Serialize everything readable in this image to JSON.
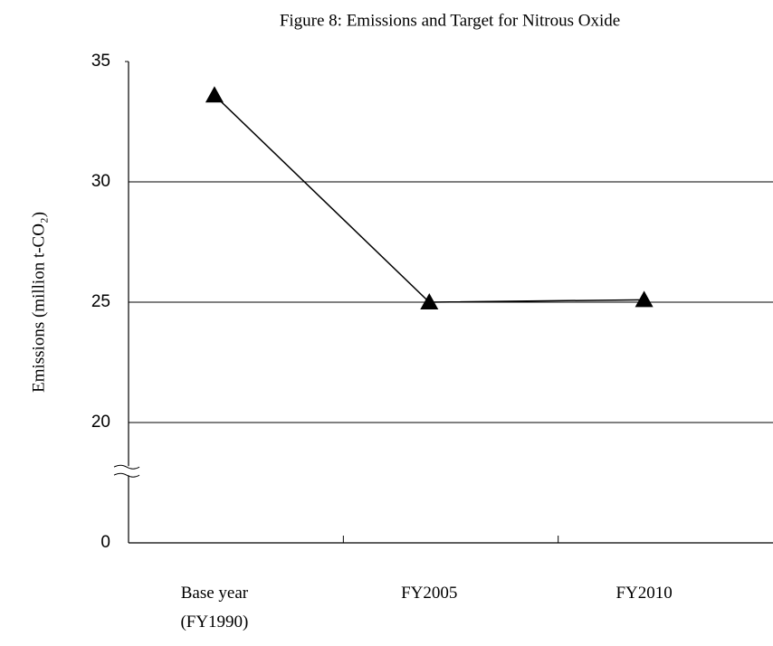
{
  "chart_data": {
    "type": "line",
    "title": "Figure 8: Emissions and Target for Nitrous Oxide",
    "ylabel": "Emissions (million t-CO₂)",
    "categories": [
      "Base year (FY1990)",
      "FY2005",
      "FY2010"
    ],
    "series": [
      {
        "name": "Nitrous Oxide",
        "color": "#000000",
        "values": [
          33.6,
          25.0,
          25.1
        ]
      }
    ],
    "ylim": [
      0,
      35
    ],
    "yticks": [
      0,
      20,
      25,
      30,
      35
    ],
    "axis_break": true,
    "grid": true
  }
}
